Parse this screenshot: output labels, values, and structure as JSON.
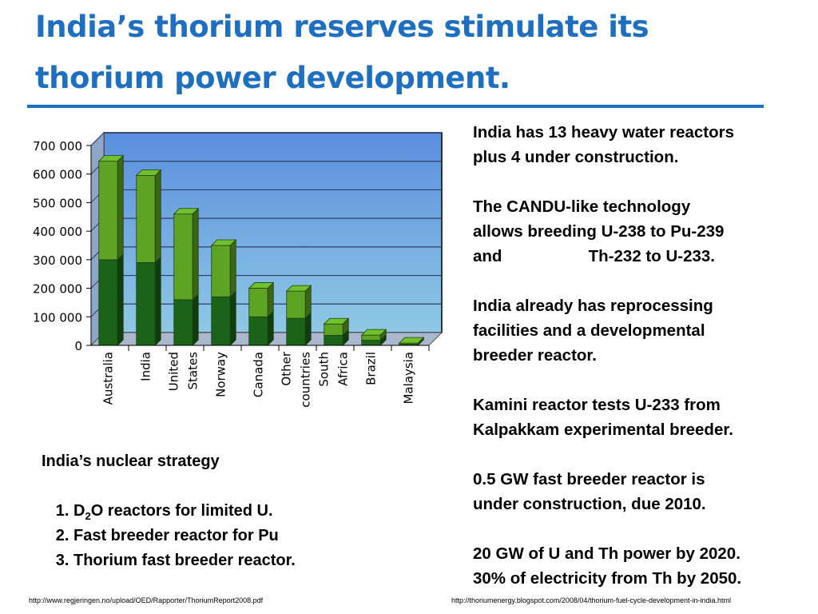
{
  "title": {
    "line1": "India’s thorium reserves stimulate its",
    "line2": "thorium power development."
  },
  "chart_data": {
    "type": "bar",
    "stacked": true,
    "categories": [
      "Australia",
      "India",
      "United States",
      "Norway",
      "Canada",
      "Other countries",
      "South Africa",
      "Brazil",
      "Malaysia"
    ],
    "category_lines": [
      [
        "Australia"
      ],
      [
        "India"
      ],
      [
        "United",
        "States"
      ],
      [
        "Norway"
      ],
      [
        "Canada"
      ],
      [
        "Other",
        "countries"
      ],
      [
        "South",
        "Africa"
      ],
      [
        "Brazil"
      ],
      [
        "Malaysia"
      ]
    ],
    "series": [
      {
        "values": [
          300000,
          290000,
          160000,
          170000,
          100000,
          95000,
          35000,
          18000,
          4000
        ]
      },
      {
        "values": [
          345000,
          305000,
          300000,
          180000,
          100000,
          95000,
          40000,
          18000,
          4000
        ]
      }
    ],
    "y_ticks": [
      0,
      100000,
      200000,
      300000,
      400000,
      500000,
      600000,
      700000
    ],
    "y_tick_labels": [
      "0",
      "100 000",
      "200 000",
      "300 000",
      "400 000",
      "500 000",
      "600 000",
      "700 000"
    ],
    "ylim": [
      0,
      700000
    ],
    "grid": true,
    "legend": "none",
    "colors": {
      "series_dark": "#1a6318",
      "series_light": "#5ea424",
      "plot_bg_top": "#5b8ede",
      "plot_bg_bottom": "#8ec8e4",
      "wall_side": "#8ea7c8",
      "floor": "#a9b8cf",
      "outline": "#1e3d12"
    }
  },
  "side_text": {
    "p1": "India has 13 heavy water reactors\nplus 4 under construction.",
    "p2": "The CANDU-like technology\nallows breeding U-238 to Pu-239\nand                   Th-232 to U-233.",
    "p3": "India already has reprocessing\nfacilities and a developmental\nbreeder reactor.",
    "p4": "Kamini reactor tests U-233 from\nKalpakkam experimental breeder.",
    "p5": "0.5 GW fast breeder reactor is\nunder construction, due 2010.",
    "p6": "20 GW of U and Th power by 2020.\n30% of electricity from Th by 2050."
  },
  "strategy": {
    "heading": "India’s nuclear strategy",
    "item1_pre": "D",
    "item1_sub": "2",
    "item1_post": "O reactors for limited U.",
    "item2": "Fast breeder reactor for Pu",
    "item3": "Thorium fast breeder reactor."
  },
  "sources": {
    "left": "http://www.regjeringen.no/upload/OED/Rapporter/ThoriumReport2008.pdf",
    "right": "http://thoriumenergy.blogspot.com/2008/04/thorium-fuel-cycle-development-in-india.html"
  }
}
